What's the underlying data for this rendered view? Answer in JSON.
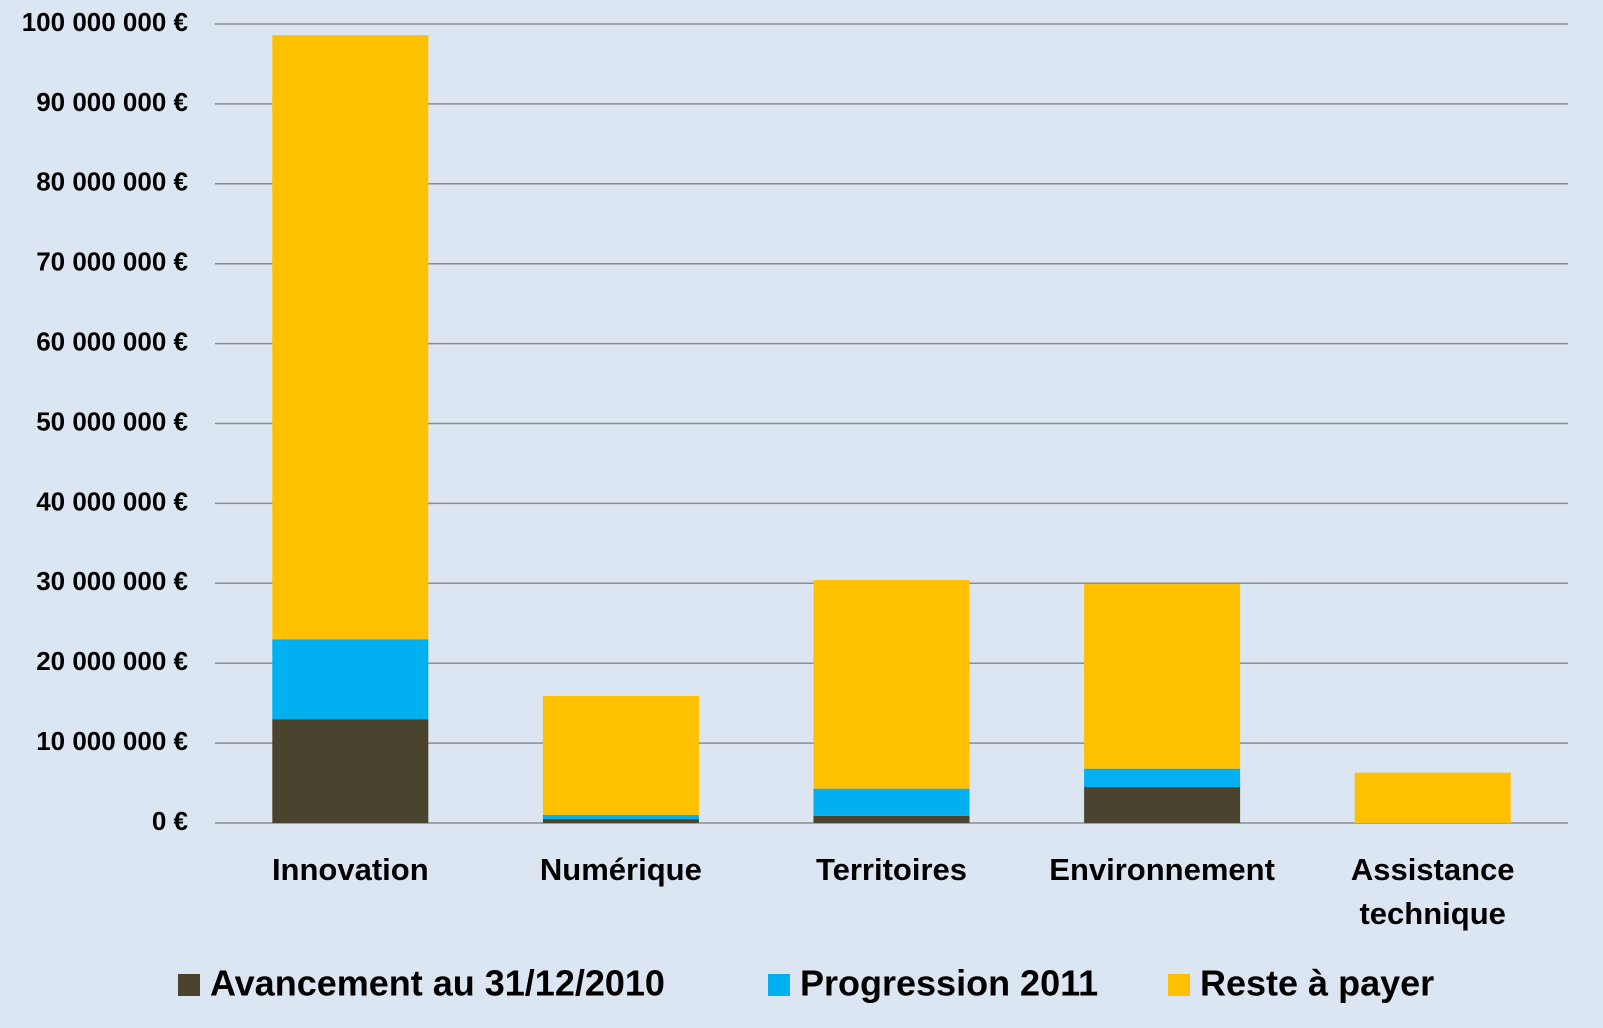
{
  "chart_data": {
    "type": "stacked_bar",
    "categories": [
      "Innovation",
      "Numérique",
      "Territoires",
      "Environnement",
      "Assistance technique"
    ],
    "series": [
      {
        "name": "Avancement au 31/12/2010",
        "color": "#4a432d",
        "values": [
          13000000,
          500000,
          900000,
          4500000,
          0
        ]
      },
      {
        "name": "Progression 2011",
        "color": "#00b0f0",
        "values": [
          10000000,
          500000,
          3400000,
          2300000,
          0
        ]
      },
      {
        "name": "Reste à payer",
        "color": "#ffc000",
        "values": [
          75600000,
          14900000,
          26100000,
          23100000,
          6300000
        ]
      }
    ],
    "ylim": [
      0,
      100000000
    ],
    "yticks": [
      {
        "value": 0,
        "label": "0 €"
      },
      {
        "value": 10000000,
        "label": "10 000 000 €"
      },
      {
        "value": 20000000,
        "label": "20 000 000 €"
      },
      {
        "value": 30000000,
        "label": "30 000 000 €"
      },
      {
        "value": 40000000,
        "label": "40 000 000 €"
      },
      {
        "value": 50000000,
        "label": "50 000 000 €"
      },
      {
        "value": 60000000,
        "label": "60 000 000 €"
      },
      {
        "value": 70000000,
        "label": "70 000 000 €"
      },
      {
        "value": 80000000,
        "label": "80 000 000 €"
      },
      {
        "value": 90000000,
        "label": "90 000 000 €"
      },
      {
        "value": 100000000,
        "label": "100 000 000 €"
      }
    ],
    "grid": true,
    "legend": "bottom"
  }
}
